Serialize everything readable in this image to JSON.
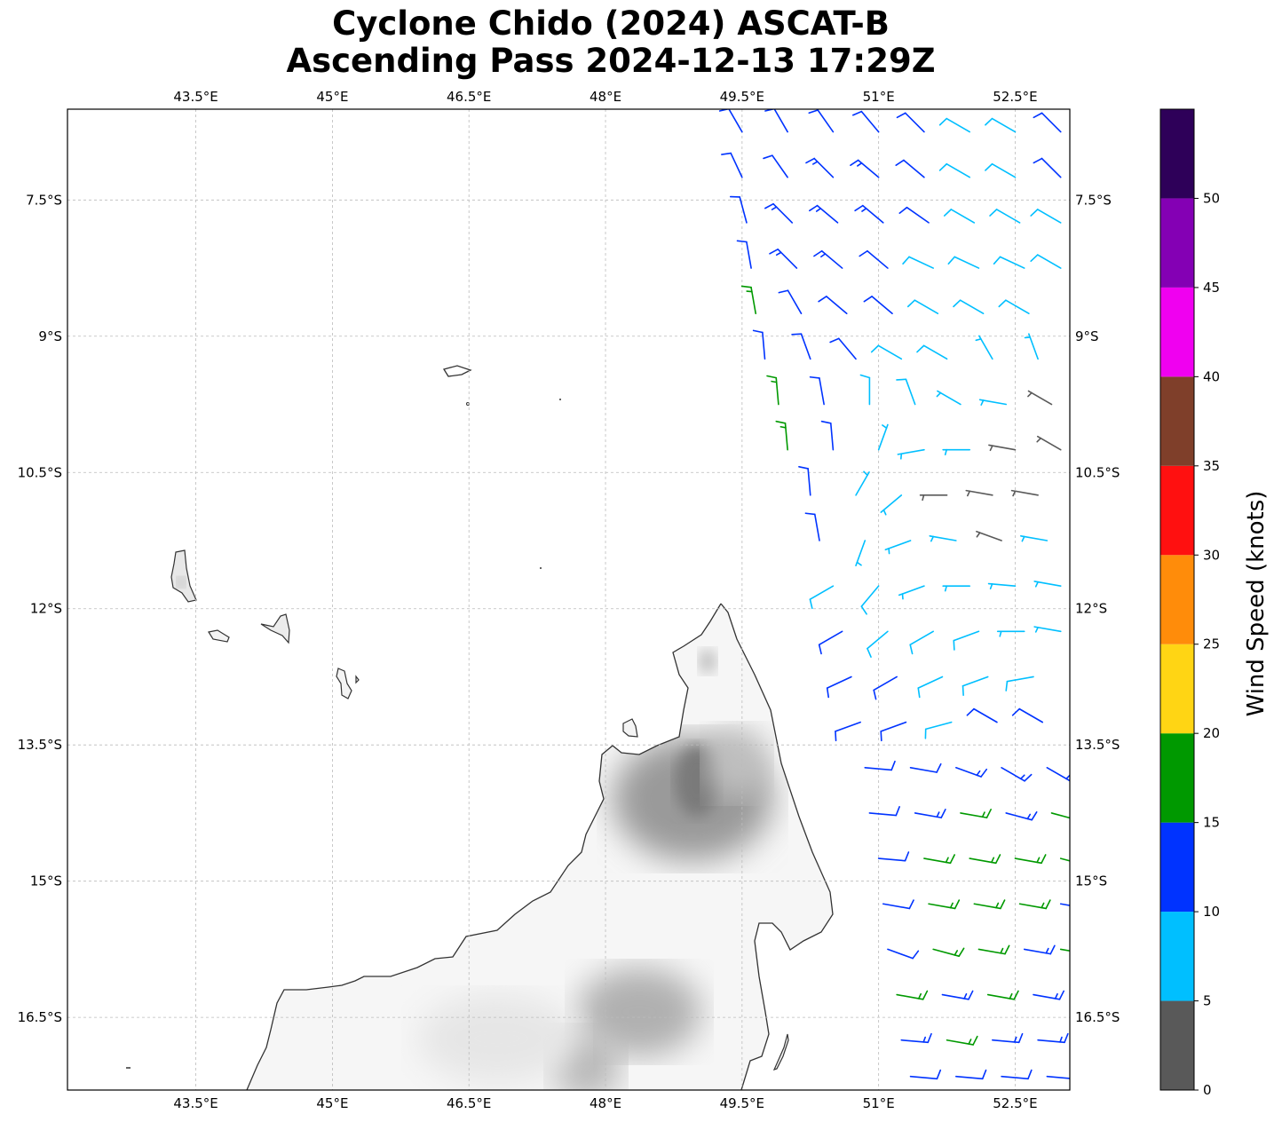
{
  "title": {
    "line1": "Cyclone Chido (2024) ASCAT-B",
    "line2": "Ascending Pass 2024-12-13 17:29Z"
  },
  "map": {
    "lon_range": [
      42.09,
      53.1
    ],
    "lat_range": [
      -6.5,
      -17.3
    ],
    "gridlines": true,
    "lon_ticks": [
      {
        "value": 43.5,
        "label": "43.5°E"
      },
      {
        "value": 45.0,
        "label": "45°E"
      },
      {
        "value": 46.5,
        "label": "46.5°E"
      },
      {
        "value": 48.0,
        "label": "48°E"
      },
      {
        "value": 49.5,
        "label": "49.5°E"
      },
      {
        "value": 51.0,
        "label": "51°E"
      },
      {
        "value": 52.5,
        "label": "52.5°E"
      }
    ],
    "lat_ticks": [
      {
        "value": -7.5,
        "label": "7.5°S"
      },
      {
        "value": -9.0,
        "label": "9°S"
      },
      {
        "value": -10.5,
        "label": "10.5°S"
      },
      {
        "value": -12.0,
        "label": "12°S"
      },
      {
        "value": -13.5,
        "label": "13.5°S"
      },
      {
        "value": -15.0,
        "label": "15°S"
      },
      {
        "value": -16.5,
        "label": "16.5°S"
      }
    ],
    "land_colors": {
      "coast": "#333333",
      "terrain_low": "#fafafa",
      "terrain_high": "#7a7a7a"
    }
  },
  "colorbar": {
    "label": "Wind Speed (knots)",
    "range": [
      0,
      55
    ],
    "ticks": [
      "0",
      "5",
      "10",
      "15",
      "20",
      "25",
      "30",
      "35",
      "40",
      "45",
      "50"
    ],
    "bins": [
      {
        "min": 0,
        "max": 5,
        "color": "#595959"
      },
      {
        "min": 5,
        "max": 10,
        "color": "#00bfff"
      },
      {
        "min": 10,
        "max": 15,
        "color": "#0033ff"
      },
      {
        "min": 15,
        "max": 20,
        "color": "#009900"
      },
      {
        "min": 20,
        "max": 25,
        "color": "#ffd514"
      },
      {
        "min": 25,
        "max": 30,
        "color": "#ff8c0a"
      },
      {
        "min": 30,
        "max": 35,
        "color": "#ff1010"
      },
      {
        "min": 35,
        "max": 40,
        "color": "#7f3f2a"
      },
      {
        "min": 40,
        "max": 45,
        "color": "#f000f0"
      },
      {
        "min": 45,
        "max": 50,
        "color": "#8400b4"
      },
      {
        "min": 50,
        "max": 55,
        "color": "#2e0059"
      }
    ]
  },
  "wind_barbs_fields": [
    "lon",
    "lat",
    "speed_kt",
    "dir_from_deg"
  ],
  "wind_barbs": [
    [
      49.5,
      -6.75,
      12,
      330
    ],
    [
      50.0,
      -6.75,
      12,
      330
    ],
    [
      50.5,
      -6.75,
      12,
      325
    ],
    [
      51.0,
      -6.75,
      12,
      320
    ],
    [
      51.5,
      -6.75,
      12,
      315
    ],
    [
      52.0,
      -6.75,
      9,
      300
    ],
    [
      52.5,
      -6.75,
      9,
      300
    ],
    [
      53.0,
      -6.75,
      12,
      315
    ],
    [
      49.5,
      -7.25,
      12,
      335
    ],
    [
      50.0,
      -7.25,
      12,
      325
    ],
    [
      50.5,
      -7.25,
      13,
      315
    ],
    [
      51.0,
      -7.25,
      13,
      310
    ],
    [
      51.5,
      -7.25,
      12,
      310
    ],
    [
      52.0,
      -7.25,
      9,
      300
    ],
    [
      52.5,
      -7.25,
      9,
      300
    ],
    [
      53.0,
      -7.25,
      12,
      315
    ],
    [
      49.55,
      -7.75,
      12,
      345
    ],
    [
      50.05,
      -7.75,
      13,
      315
    ],
    [
      50.55,
      -7.75,
      13,
      310
    ],
    [
      51.05,
      -7.75,
      13,
      310
    ],
    [
      51.55,
      -7.75,
      12,
      305
    ],
    [
      52.05,
      -7.75,
      8,
      300
    ],
    [
      52.55,
      -7.75,
      8,
      300
    ],
    [
      53.0,
      -7.75,
      8,
      300
    ],
    [
      49.6,
      -8.25,
      12,
      350
    ],
    [
      50.1,
      -8.25,
      13,
      315
    ],
    [
      50.6,
      -8.25,
      13,
      310
    ],
    [
      51.1,
      -8.25,
      12,
      310
    ],
    [
      51.6,
      -8.25,
      8,
      295
    ],
    [
      52.1,
      -8.25,
      8,
      295
    ],
    [
      52.6,
      -8.25,
      8,
      295
    ],
    [
      53.0,
      -8.25,
      8,
      300
    ],
    [
      49.65,
      -8.75,
      16,
      350
    ],
    [
      50.15,
      -8.75,
      12,
      330
    ],
    [
      50.65,
      -8.75,
      12,
      310
    ],
    [
      51.15,
      -8.75,
      12,
      310
    ],
    [
      51.65,
      -8.75,
      8,
      300
    ],
    [
      52.15,
      -8.75,
      8,
      300
    ],
    [
      52.65,
      -8.75,
      8,
      300
    ],
    [
      49.75,
      -9.25,
      12,
      355
    ],
    [
      50.25,
      -9.25,
      12,
      340
    ],
    [
      50.75,
      -9.25,
      11,
      320
    ],
    [
      51.25,
      -9.25,
      8,
      300
    ],
    [
      51.75,
      -9.25,
      8,
      300
    ],
    [
      52.25,
      -9.25,
      7,
      330
    ],
    [
      52.75,
      -9.25,
      7,
      340
    ],
    [
      49.9,
      -9.75,
      16,
      355
    ],
    [
      50.4,
      -9.75,
      12,
      350
    ],
    [
      50.9,
      -9.75,
      8,
      0
    ],
    [
      51.4,
      -9.75,
      8,
      340
    ],
    [
      51.9,
      -9.75,
      7,
      300
    ],
    [
      52.4,
      -9.75,
      6,
      280
    ],
    [
      52.9,
      -9.75,
      4,
      300
    ],
    [
      50.0,
      -10.25,
      16,
      355
    ],
    [
      50.5,
      -10.25,
      12,
      355
    ],
    [
      51.0,
      -10.25,
      7,
      20
    ],
    [
      51.5,
      -10.25,
      7,
      260
    ],
    [
      52.0,
      -10.25,
      7,
      270
    ],
    [
      52.5,
      -10.25,
      4,
      280
    ],
    [
      53.0,
      -10.25,
      4,
      300
    ],
    [
      50.25,
      -10.75,
      12,
      355
    ],
    [
      50.75,
      -10.75,
      7,
      30
    ],
    [
      51.25,
      -10.75,
      6,
      230
    ],
    [
      51.75,
      -10.75,
      4,
      270
    ],
    [
      52.25,
      -10.75,
      4,
      280
    ],
    [
      52.75,
      -10.75,
      3,
      280
    ],
    [
      50.35,
      -11.25,
      12,
      350
    ],
    [
      50.85,
      -11.25,
      7,
      200
    ],
    [
      51.35,
      -11.25,
      7,
      250
    ],
    [
      51.85,
      -11.25,
      6,
      280
    ],
    [
      52.35,
      -11.25,
      4,
      290
    ],
    [
      52.85,
      -11.25,
      6,
      280
    ],
    [
      50.5,
      -11.75,
      8,
      240
    ],
    [
      51.0,
      -11.75,
      8,
      220
    ],
    [
      51.5,
      -11.75,
      7,
      250
    ],
    [
      52.0,
      -11.75,
      7,
      270
    ],
    [
      52.5,
      -11.75,
      7,
      275
    ],
    [
      53.0,
      -11.75,
      7,
      280
    ],
    [
      50.6,
      -12.25,
      11,
      240
    ],
    [
      51.1,
      -12.25,
      9,
      230
    ],
    [
      51.6,
      -12.25,
      9,
      240
    ],
    [
      52.1,
      -12.25,
      8,
      250
    ],
    [
      52.6,
      -12.25,
      7,
      270
    ],
    [
      53.0,
      -12.25,
      7,
      280
    ],
    [
      50.7,
      -12.75,
      12,
      245
    ],
    [
      51.2,
      -12.75,
      11,
      240
    ],
    [
      51.7,
      -12.75,
      9,
      245
    ],
    [
      52.2,
      -12.75,
      9,
      250
    ],
    [
      52.7,
      -12.75,
      8,
      260
    ],
    [
      50.8,
      -13.25,
      12,
      250
    ],
    [
      51.3,
      -13.25,
      11,
      250
    ],
    [
      51.8,
      -13.25,
      9,
      255
    ],
    [
      52.3,
      -13.25,
      11,
      300
    ],
    [
      52.8,
      -13.25,
      12,
      300
    ],
    [
      50.85,
      -13.75,
      12,
      95
    ],
    [
      51.35,
      -13.75,
      12,
      100
    ],
    [
      51.85,
      -13.75,
      13,
      110
    ],
    [
      52.35,
      -13.75,
      13,
      120
    ],
    [
      52.85,
      -13.75,
      13,
      120
    ],
    [
      50.9,
      -14.25,
      12,
      95
    ],
    [
      51.4,
      -14.25,
      13,
      100
    ],
    [
      51.9,
      -14.25,
      16,
      100
    ],
    [
      52.4,
      -14.25,
      14,
      105
    ],
    [
      52.9,
      -14.25,
      16,
      105
    ],
    [
      51.0,
      -14.75,
      12,
      95
    ],
    [
      51.5,
      -14.75,
      16,
      100
    ],
    [
      52.0,
      -14.75,
      17,
      100
    ],
    [
      52.5,
      -14.75,
      17,
      100
    ],
    [
      53.0,
      -14.75,
      16,
      105
    ],
    [
      51.05,
      -15.25,
      12,
      100
    ],
    [
      51.55,
      -15.25,
      16,
      100
    ],
    [
      52.05,
      -15.25,
      16,
      100
    ],
    [
      52.55,
      -15.25,
      17,
      100
    ],
    [
      53.0,
      -15.25,
      14,
      100
    ],
    [
      51.1,
      -15.75,
      12,
      110
    ],
    [
      51.6,
      -15.75,
      16,
      105
    ],
    [
      52.1,
      -15.75,
      16,
      100
    ],
    [
      52.6,
      -15.75,
      14,
      100
    ],
    [
      53.0,
      -15.75,
      16,
      100
    ],
    [
      51.2,
      -16.25,
      16,
      100
    ],
    [
      51.7,
      -16.25,
      14,
      100
    ],
    [
      52.2,
      -16.25,
      16,
      100
    ],
    [
      52.7,
      -16.25,
      13,
      100
    ],
    [
      51.25,
      -16.75,
      13,
      95
    ],
    [
      51.75,
      -16.75,
      16,
      100
    ],
    [
      52.25,
      -16.75,
      13,
      95
    ],
    [
      52.75,
      -16.75,
      13,
      95
    ],
    [
      51.35,
      -17.15,
      12,
      95
    ],
    [
      51.85,
      -17.15,
      12,
      95
    ],
    [
      52.35,
      -17.15,
      12,
      95
    ],
    [
      52.85,
      -17.15,
      12,
      95
    ]
  ]
}
